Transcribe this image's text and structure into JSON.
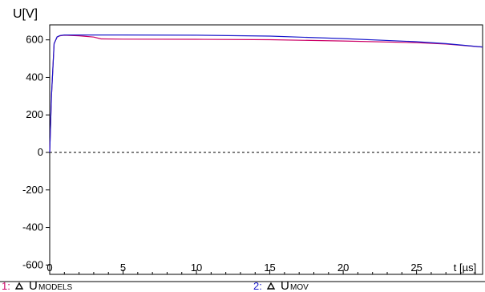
{
  "chart_data": {
    "type": "line",
    "ylabel": "U[V]",
    "xlabel": "t [µs]",
    "xlim": [
      0,
      29.5
    ],
    "ylim": [
      -650,
      680
    ],
    "x_ticks": [
      0,
      5,
      10,
      15,
      20,
      25
    ],
    "y_ticks": [
      600,
      400,
      200,
      0,
      -200,
      -400,
      -600
    ],
    "zero_line": "dashed",
    "grid": false,
    "legend_position": "bottom",
    "series": [
      {
        "legend_number": "1:",
        "legend_name": "U",
        "legend_subscript": "MODELS",
        "color": "#cc0066",
        "x": [
          0,
          0.12,
          0.3,
          0.5,
          0.7,
          1,
          2,
          3,
          3.5,
          5,
          10,
          15,
          20,
          25,
          27,
          29.5
        ],
        "y": [
          0,
          300,
          580,
          615,
          622,
          625,
          622,
          615,
          605,
          604,
          603,
          601,
          594,
          585,
          578,
          562
        ]
      },
      {
        "legend_number": "2:",
        "legend_name": "U",
        "legend_subscript": "MOV",
        "color": "#1a1acc",
        "x": [
          0,
          0.12,
          0.3,
          0.5,
          0.7,
          1,
          2,
          5,
          10,
          15,
          20,
          25,
          27,
          29.5
        ],
        "y": [
          0,
          300,
          580,
          616,
          623,
          626,
          626,
          626,
          625,
          620,
          607,
          590,
          580,
          562
        ]
      }
    ]
  }
}
